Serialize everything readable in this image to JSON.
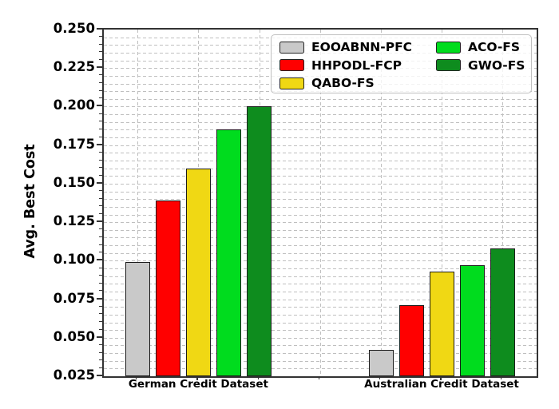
{
  "figure": {
    "background": "#ffffff",
    "text_color": "#000000",
    "grid_color": "#bfbfbf",
    "spine_color": "#333333"
  },
  "chart_data": {
    "type": "bar",
    "title": "",
    "xlabel": "",
    "ylabel": "Avg. Best Cost",
    "ylim": [
      0.025,
      0.25
    ],
    "ytick_step": 0.025,
    "yminor_step": 0.005,
    "y_tick_labels": [
      "0.025",
      "0.050",
      "0.075",
      "0.100",
      "0.125",
      "0.150",
      "0.175",
      "0.200",
      "0.225",
      "0.250"
    ],
    "grid": "both, dashed, major and minor",
    "legend_position": "upper right inside plot",
    "legend_columns": [
      3,
      2
    ],
    "categories": [
      "German Credit Dataset",
      "Australian Credit Dataset"
    ],
    "series": [
      {
        "name": "EOOABNN-PFC",
        "color": "#c9c9c9",
        "values": [
          0.099,
          0.042
        ]
      },
      {
        "name": "HHPODL-FCP",
        "color": "#ff0000",
        "values": [
          0.139,
          0.071
        ]
      },
      {
        "name": "QABO-FS",
        "color": "#f0d814",
        "values": [
          0.16,
          0.093
        ]
      },
      {
        "name": "ACO-FS",
        "color": "#00dc1e",
        "values": [
          0.185,
          0.097
        ]
      },
      {
        "name": "GWO-FS",
        "color": "#0e8c1e",
        "values": [
          0.2,
          0.108
        ]
      }
    ]
  }
}
